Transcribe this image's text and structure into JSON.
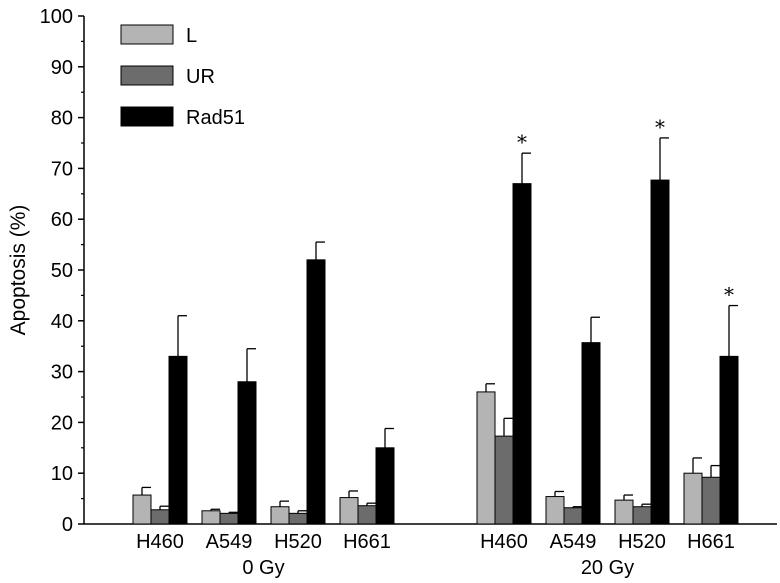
{
  "chart_data": {
    "type": "bar",
    "title": "",
    "ylabel": "Apoptosis (%)",
    "xlabel": "",
    "ylim": [
      0,
      100
    ],
    "yticks": [
      0,
      10,
      20,
      30,
      40,
      50,
      60,
      70,
      80,
      90,
      100
    ],
    "legend_position": "top-left",
    "series": [
      {
        "name": "L",
        "color": "#b4b4b4"
      },
      {
        "name": "UR",
        "color": "#6c6c6c"
      },
      {
        "name": "Rad51",
        "color": "#000000"
      }
    ],
    "groups": [
      {
        "label": "0 Gy",
        "categories": [
          {
            "label": "H460",
            "values": [
              5.7,
              2.8,
              33
            ],
            "errors": [
              1.5,
              0.7,
              8
            ],
            "significant": [
              false,
              false,
              false
            ]
          },
          {
            "label": "A549",
            "values": [
              2.6,
              2.1,
              28
            ],
            "errors": [
              0.3,
              0.2,
              6.5
            ],
            "significant": [
              false,
              false,
              false
            ]
          },
          {
            "label": "H520",
            "values": [
              3.4,
              2.1,
              52
            ],
            "errors": [
              1.1,
              0.5,
              3.5
            ],
            "significant": [
              false,
              false,
              false
            ]
          },
          {
            "label": "H661",
            "values": [
              5.2,
              3.6,
              15
            ],
            "errors": [
              1.3,
              0.5,
              3.8
            ],
            "significant": [
              false,
              false,
              false
            ]
          }
        ]
      },
      {
        "label": "20 Gy",
        "categories": [
          {
            "label": "H460",
            "values": [
              26,
              17.3,
              67
            ],
            "errors": [
              1.6,
              3.5,
              6
            ],
            "significant": [
              false,
              false,
              true
            ]
          },
          {
            "label": "A549",
            "values": [
              5.4,
              3.2,
              35.7
            ],
            "errors": [
              1,
              0.2,
              5
            ],
            "significant": [
              false,
              false,
              false
            ]
          },
          {
            "label": "H520",
            "values": [
              4.7,
              3.4,
              67.7
            ],
            "errors": [
              1,
              0.5,
              8.3
            ],
            "significant": [
              false,
              false,
              true
            ]
          },
          {
            "label": "H661",
            "values": [
              10,
              9.2,
              33
            ],
            "errors": [
              3,
              2.3,
              10
            ],
            "significant": [
              false,
              false,
              true
            ]
          }
        ]
      }
    ],
    "significance_marker": "*"
  }
}
